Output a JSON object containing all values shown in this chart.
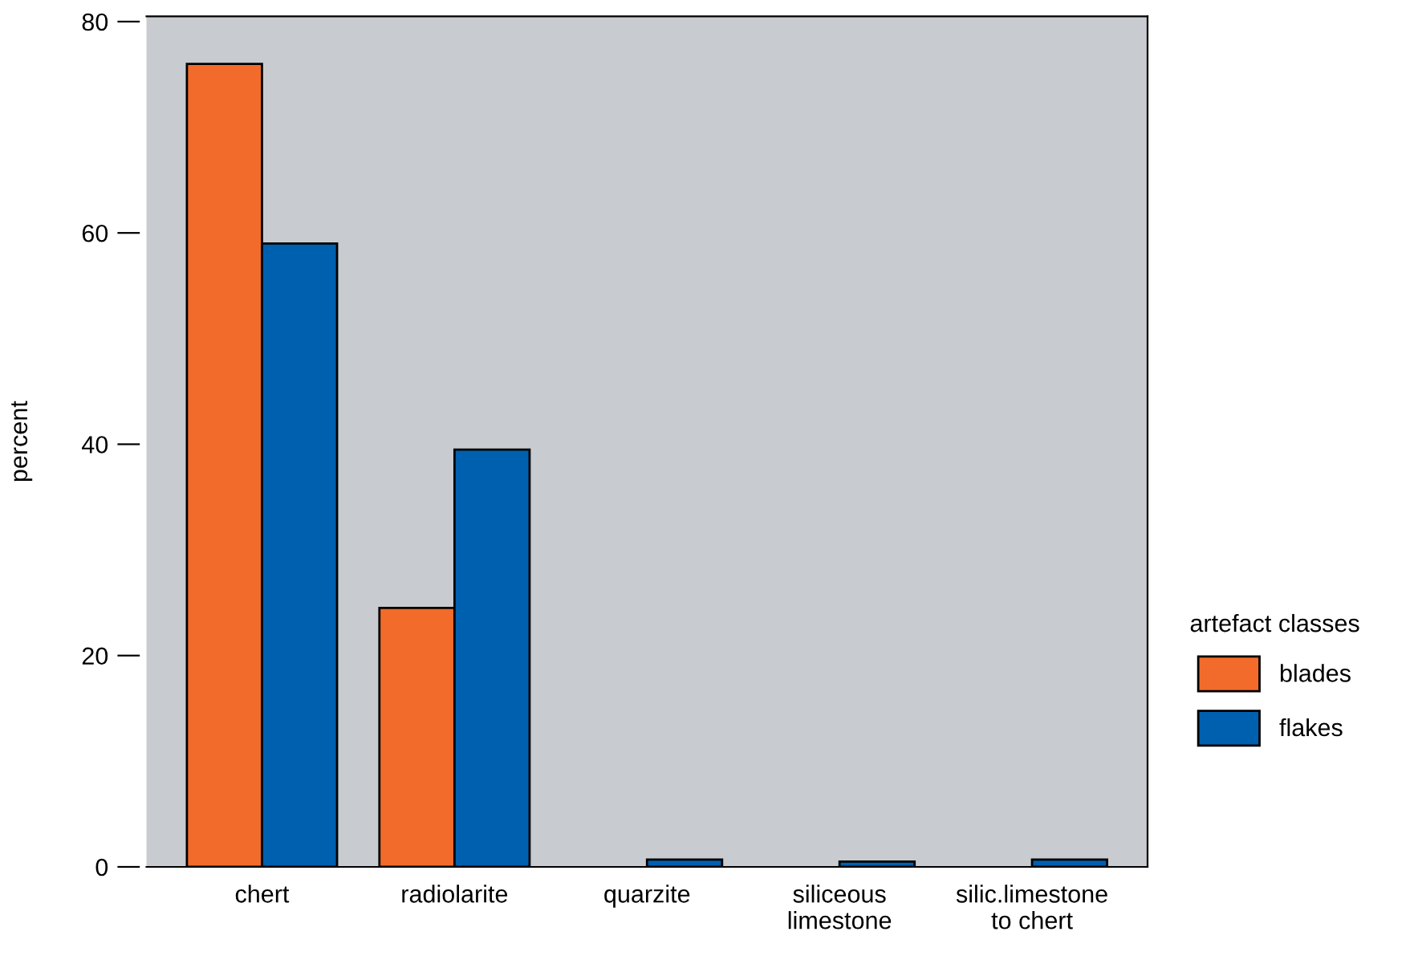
{
  "chart_data": {
    "type": "bar",
    "ylabel": "percent",
    "legend_title": "artefact classes",
    "categories": [
      "chert",
      "radiolarite",
      "quarzite",
      "siliceous\nlimestone",
      "silic.limestone\nto chert"
    ],
    "series": [
      {
        "name": "blades",
        "color": "#f26b2a",
        "values": [
          76,
          24.5,
          null,
          null,
          null
        ]
      },
      {
        "name": "flakes",
        "color": "#0060b0",
        "values": [
          59,
          39.5,
          0.7,
          0.5,
          0.7
        ]
      }
    ],
    "ylim": [
      0,
      80.5
    ],
    "yticks": [
      0,
      20,
      40,
      60,
      80
    ],
    "grid": false,
    "legend": "right"
  }
}
